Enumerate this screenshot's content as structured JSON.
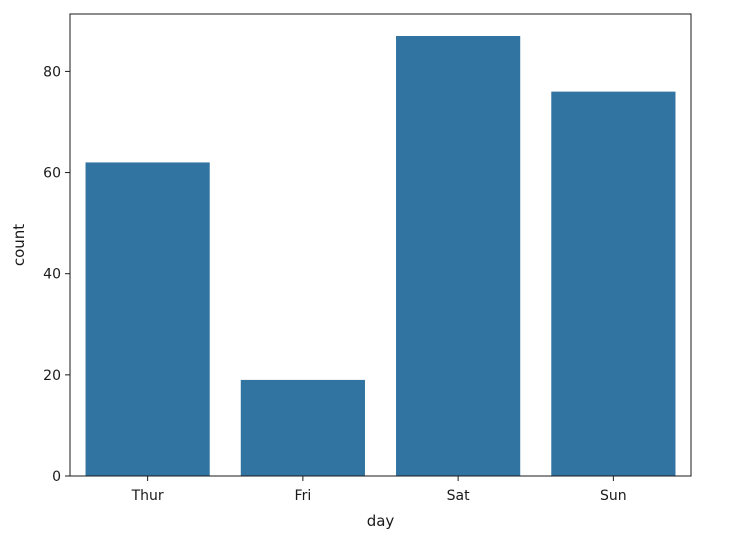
{
  "chart_data": {
    "type": "bar",
    "title": "",
    "xlabel": "day",
    "ylabel": "count",
    "categories": [
      "Thur",
      "Fri",
      "Sat",
      "Sun"
    ],
    "values": [
      62,
      19,
      87,
      76
    ],
    "ylim": [
      0,
      91.35
    ],
    "yticks": [
      0,
      20,
      40,
      60,
      80
    ],
    "grid": false,
    "legend": "none",
    "bar_color": "#3274a1"
  }
}
